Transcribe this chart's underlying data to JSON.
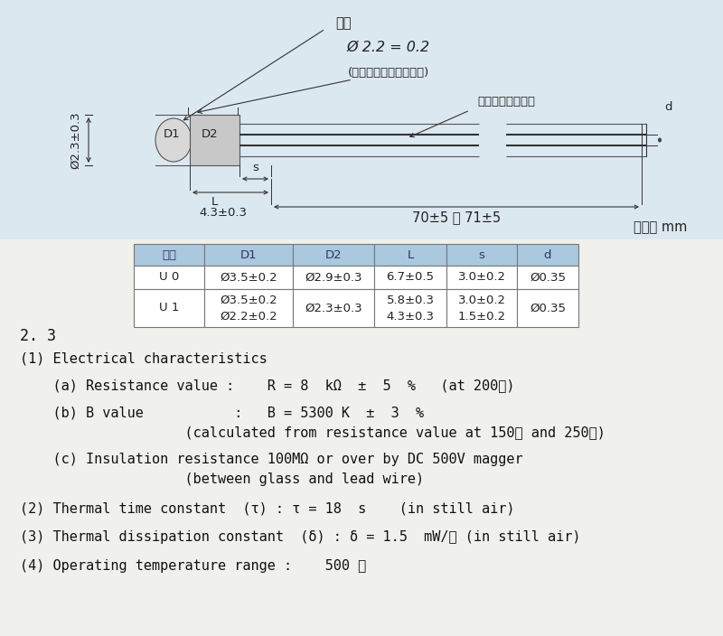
{
  "bg_color": "#e8eef4",
  "white_bg": "#f0f0ec",
  "diagram_bg": "#dce8f0",
  "glass_label": "玻璃",
  "ceramic_label": "(高温金属氧化物烧結體)",
  "wire_label": "杜美線（銅包線）",
  "dim_dia": "Ø 2.2 = 0.2",
  "dim_vertical": "Ø2.3±0.3",
  "dim_bottom": "4.3±0.3",
  "dim_length": "70±5 或 71±5",
  "label_d": "d",
  "label_L": "L",
  "label_s": "s",
  "label_D1": "D1",
  "label_D2": "D2",
  "unit_label": "單位： mm",
  "table_headers": [
    "型號",
    "D1",
    "D2",
    "L",
    "s",
    "d"
  ],
  "header_bg": "#aac8de",
  "row0": [
    "U 0",
    "Ø3.5±0.2",
    "Ø2.9±0.3",
    "6.7±0.5",
    "3.0±0.2",
    "Ø0.35"
  ],
  "row1_col0": "U 1",
  "row1_col1": "Ø3.5±0.2\nØ2.2±0.2",
  "row1_col2": "Ø2.3±0.3",
  "row1_col3": "5.8±0.3\n4.3±0.3",
  "row1_col4": "3.0±0.2\n1.5±0.2",
  "row1_col5": "Ø0.35",
  "section_title": "2. 3",
  "line1": "(1) Electrical characteristics",
  "line2": "    (a) Resistance value :    R = 8  kΩ  ±  5  %   (at 200℃)",
  "line3": "    (b) B value           :   B = 5300 K  ±  3  %",
  "line4": "                    (calculated from resistance value at 150℃ and 250℃)",
  "line5": "    (c) Insulation resistance 100MΩ or over by DC 500V magger",
  "line6": "                    (between glass and lead wire)",
  "line7": "(2) Thermal time constant  (τ) : τ = 18  s    (in still air)",
  "line8": "(3) Thermal dissipation constant  (δ) : δ = 1.5  mW/℃ (in still air)",
  "line9": "(4) Operating temperature range :    500 ℃",
  "fs_diag": 9.5,
  "fs_table": 9.5,
  "fs_spec": 11
}
